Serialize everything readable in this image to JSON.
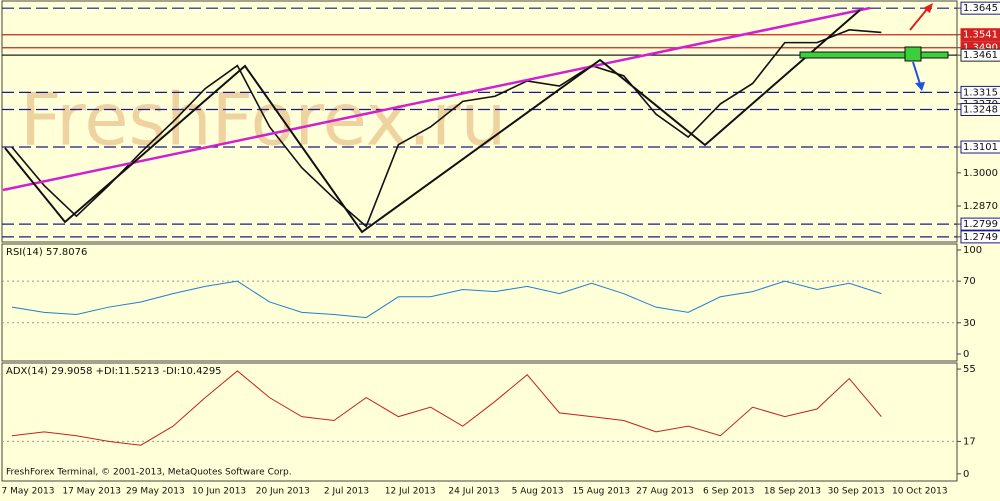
{
  "chart_data": [
    {
      "type": "line",
      "color": "#111111",
      "x_labels": [
        "7 May 2013",
        "17 May 2013",
        "29 May 2013",
        "10 Jun 2013",
        "20 Jun 2013",
        "2 Jul 2013",
        "12 Jul 2013",
        "24 Jul 2013",
        "5 Aug 2013",
        "15 Aug 2013",
        "27 Aug 2013",
        "6 Sep 2013",
        "18 Sep 2013",
        "30 Sep 2013",
        "10 Oct 2013"
      ],
      "values": [
        1.31,
        1.295,
        1.283,
        1.295,
        1.308,
        1.32,
        1.333,
        1.342,
        1.318,
        1.302,
        1.29,
        1.279,
        1.311,
        1.318,
        1.328,
        1.33,
        1.336,
        1.334,
        1.342,
        1.338,
        1.323,
        1.314,
        1.327,
        1.335,
        1.351,
        1.351,
        1.356,
        1.355
      ],
      "ylim": [
        1.2725,
        1.3677
      ],
      "yticks": [
        1.3645,
        1.3541,
        {
          "value": 1.349,
          "label": "1.3490"
        },
        1.3461,
        1.3315,
        {
          "value": 1.327,
          "label": "1.3270"
        },
        1.3248,
        1.3101,
        {
          "value": 1.3,
          "label": "1.3000"
        },
        {
          "value": 1.287,
          "label": "1.2870"
        },
        1.2799,
        1.2749
      ],
      "hlines": [
        {
          "value": 1.3645,
          "color": "#1a1a8c"
        },
        {
          "value": 1.3541,
          "color": "#d42020"
        },
        {
          "value": 1.349,
          "color": "#d42020"
        },
        {
          "value": 1.3461,
          "color": "#222222"
        },
        {
          "value": 1.3315,
          "color": "#1a1a8c"
        },
        {
          "value": 1.3248,
          "color": "#1a1a8c"
        },
        {
          "value": 1.3101,
          "color": "#1a1a8c"
        },
        {
          "value": 1.2799,
          "color": "#1a1a8c"
        },
        {
          "value": 1.2749,
          "color": "#1a1a8c"
        }
      ]
    },
    {
      "type": "line",
      "title": "RSI(14) 57.8076",
      "color": "#1e7fd0",
      "values": [
        45,
        40,
        38,
        45,
        50,
        58,
        65,
        70,
        50,
        40,
        38,
        35,
        55,
        55,
        62,
        60,
        65,
        58,
        68,
        58,
        45,
        40,
        55,
        60,
        70,
        62,
        68,
        58
      ],
      "ylim": [
        -7.7,
        106.7
      ],
      "yticks": [
        100,
        70,
        30,
        0
      ],
      "levels": [
        70,
        30
      ]
    },
    {
      "type": "line",
      "title": "ADX(14) 29.9058 +DI:11.5213 -DI:10.4295",
      "color": "#c82020",
      "values": [
        20,
        22,
        20,
        17,
        15,
        25,
        40,
        54,
        40,
        30,
        28,
        40,
        30,
        35,
        25,
        38,
        52,
        32,
        30,
        28,
        22,
        25,
        20,
        35,
        30,
        34,
        50,
        30
      ],
      "ylim": [
        -4.3,
        58.7
      ],
      "yticks": [
        55,
        17,
        0
      ],
      "levels": [
        17
      ]
    }
  ],
  "watermark": "FreshForex.ru",
  "footer": "FreshForex Terminal, © 2001-2013, MetaQuotes Software Corp."
}
